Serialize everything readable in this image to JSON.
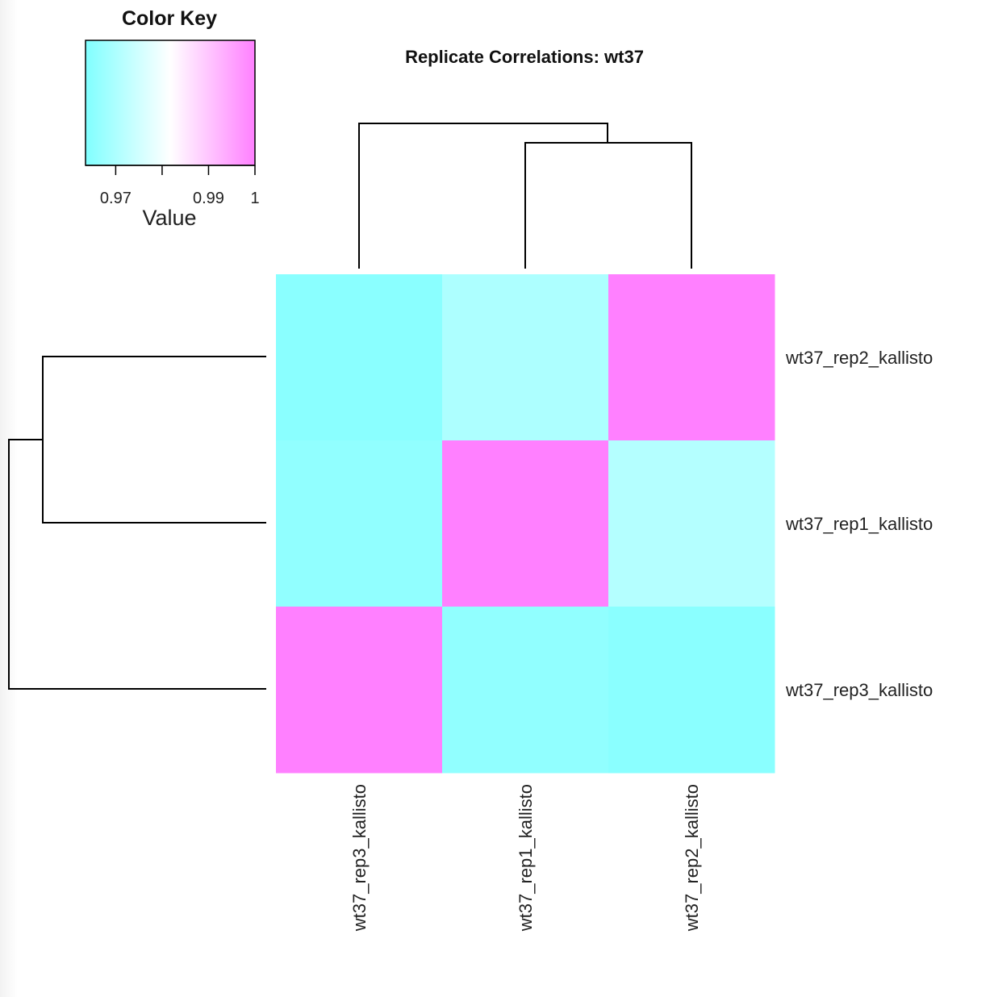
{
  "chart_data": {
    "type": "heatmap",
    "title": "Replicate Correlations: wt37",
    "row_labels": [
      "wt37_rep2_kallisto",
      "wt37_rep1_kallisto",
      "wt37_rep3_kallisto"
    ],
    "col_labels": [
      "wt37_rep3_kallisto",
      "wt37_rep1_kallisto",
      "wt37_rep2_kallisto"
    ],
    "values": [
      [
        0.965,
        0.97,
        1.0
      ],
      [
        0.966,
        1.0,
        0.971
      ],
      [
        1.0,
        0.966,
        0.965
      ]
    ],
    "color_key": {
      "title": "Color Key",
      "xlabel": "Value",
      "range": [
        0.9635,
        1.0
      ],
      "ticks": [
        0.97,
        0.98,
        0.99,
        1.0
      ],
      "tick_labels": [
        "0.97",
        "",
        "0.99",
        "1"
      ],
      "colors": [
        "#80ffff",
        "#ffffff",
        "#ff80ff"
      ]
    },
    "dendrogram": {
      "columns": "((wt37_rep1_kallisto, wt37_rep2_kallisto), wt37_rep3_kallisto)",
      "rows": "((wt37_rep2_kallisto, wt37_rep1_kallisto), wt37_rep3_kallisto)"
    }
  }
}
